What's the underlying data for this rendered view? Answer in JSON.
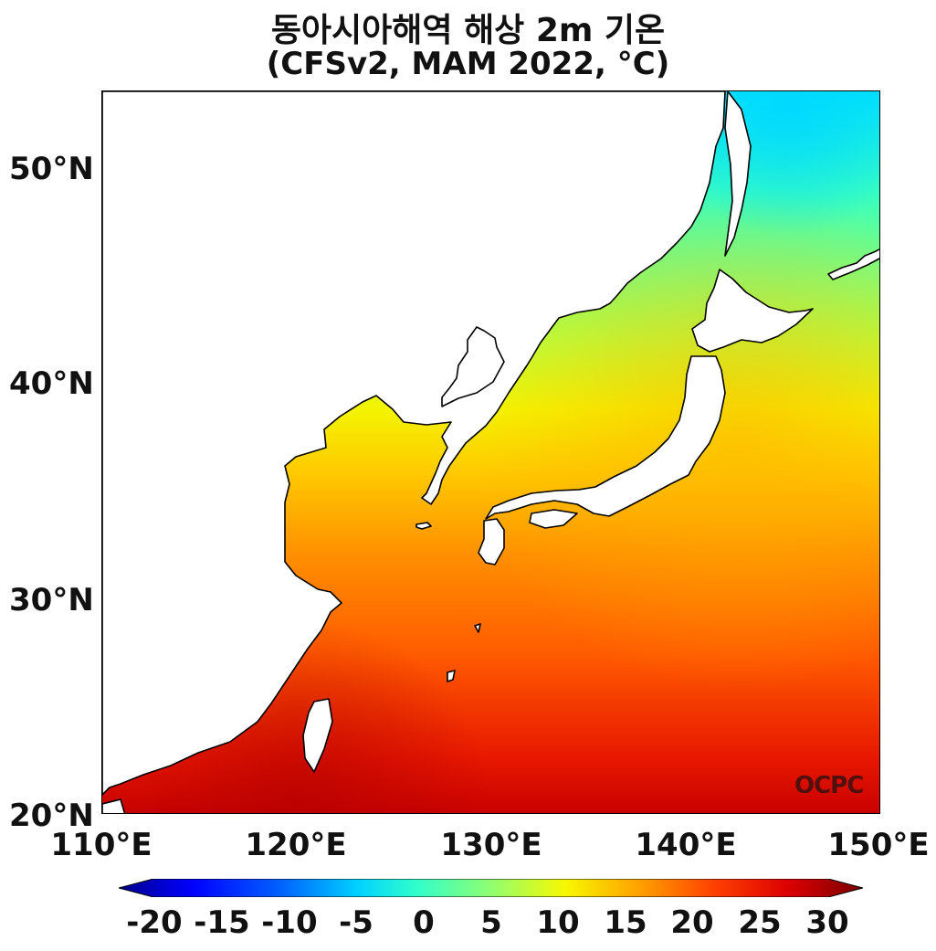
{
  "title": {
    "line1": "동아시아해역 해상 2m 기온",
    "line2": "(CFSv2, MAM 2022, °C)"
  },
  "axes": {
    "lat_ticks": [
      "50°N",
      "40°N",
      "30°N",
      "20°N"
    ],
    "lon_ticks": [
      "110°E",
      "120°E",
      "130°E",
      "140°E",
      "150°E"
    ]
  },
  "colorbar": {
    "ticks": [
      "-20",
      "-15",
      "-10",
      "-5",
      "0",
      "5",
      "10",
      "15",
      "20",
      "25",
      "30"
    ],
    "range": [
      -20,
      30
    ]
  },
  "watermark": "OCPC",
  "colors": {
    "land": "#ffffff",
    "coast": "#000000"
  }
}
